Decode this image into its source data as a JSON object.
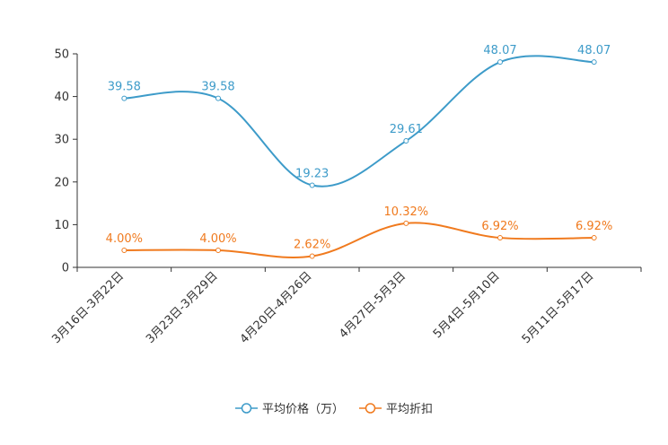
{
  "chart_data": {
    "type": "line",
    "title": "",
    "xlabel": "",
    "ylabel": "",
    "categories": [
      "3月16日-3月22日",
      "3月23日-3月29日",
      "4月20日-4月26日",
      "4月27日-5月3日",
      "5月4日-5月10日",
      "5月11日-5月17日"
    ],
    "ylim": [
      0,
      50
    ],
    "yticks": [
      0,
      10,
      20,
      30,
      40,
      50
    ],
    "grid": false,
    "legend_position": "bottom-center",
    "series": [
      {
        "name": "平均价格（万）",
        "color": "#3d9bc9",
        "values": [
          39.58,
          39.58,
          19.23,
          29.61,
          48.07,
          48.07
        ],
        "labels": [
          "39.58",
          "39.58",
          "19.23",
          "29.61",
          "48.07",
          "48.07"
        ]
      },
      {
        "name": "平均折扣",
        "color": "#f07a1e",
        "values": [
          4.0,
          4.0,
          2.62,
          10.32,
          6.92,
          6.92
        ],
        "labels": [
          "4.00%",
          "4.00%",
          "2.62%",
          "10.32%",
          "6.92%",
          "6.92%"
        ]
      }
    ]
  }
}
